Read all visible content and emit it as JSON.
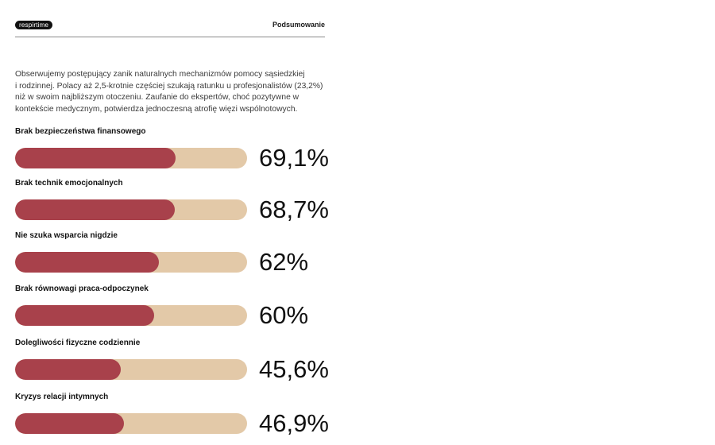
{
  "header": {
    "logo_text": "respirtime",
    "section_label": "Podsumowanie"
  },
  "intro": [
    "Obserwujemy postępujący zanik naturalnych mechanizmów pomocy sąsiedzkiej",
    "i rodzinnej. Polacy aż 2,5-krotnie częściej szukają ratunku u profesjonalistów (23,2%)",
    "niż w swoim najbliższym otoczeniu. Zaufanie do ekspertów, choć pozytywne w",
    "kontekście medycznym, potwierdza jednoczesną atrofię więzi wspólnotowych."
  ],
  "chart_data": {
    "type": "bar",
    "orientation": "horizontal",
    "xlim": [
      0,
      100
    ],
    "categories": [
      "Brak bezpieczeństwa finansowego",
      "Brak technik emocjonalnych",
      "Nie szuka wsparcia nigdzie",
      "Brak równowagi praca-odpoczynek",
      "Dolegliwości fizyczne codziennie",
      "Kryzys relacji intymnych"
    ],
    "values": [
      69.1,
      68.7,
      62,
      60,
      45.6,
      46.9
    ],
    "value_labels": [
      "69,1%",
      "68,7%",
      "62%",
      "60%",
      "45,6%",
      "46,9%"
    ],
    "colors": {
      "fill": "#a8414b",
      "track": "#e3c9a8"
    }
  }
}
